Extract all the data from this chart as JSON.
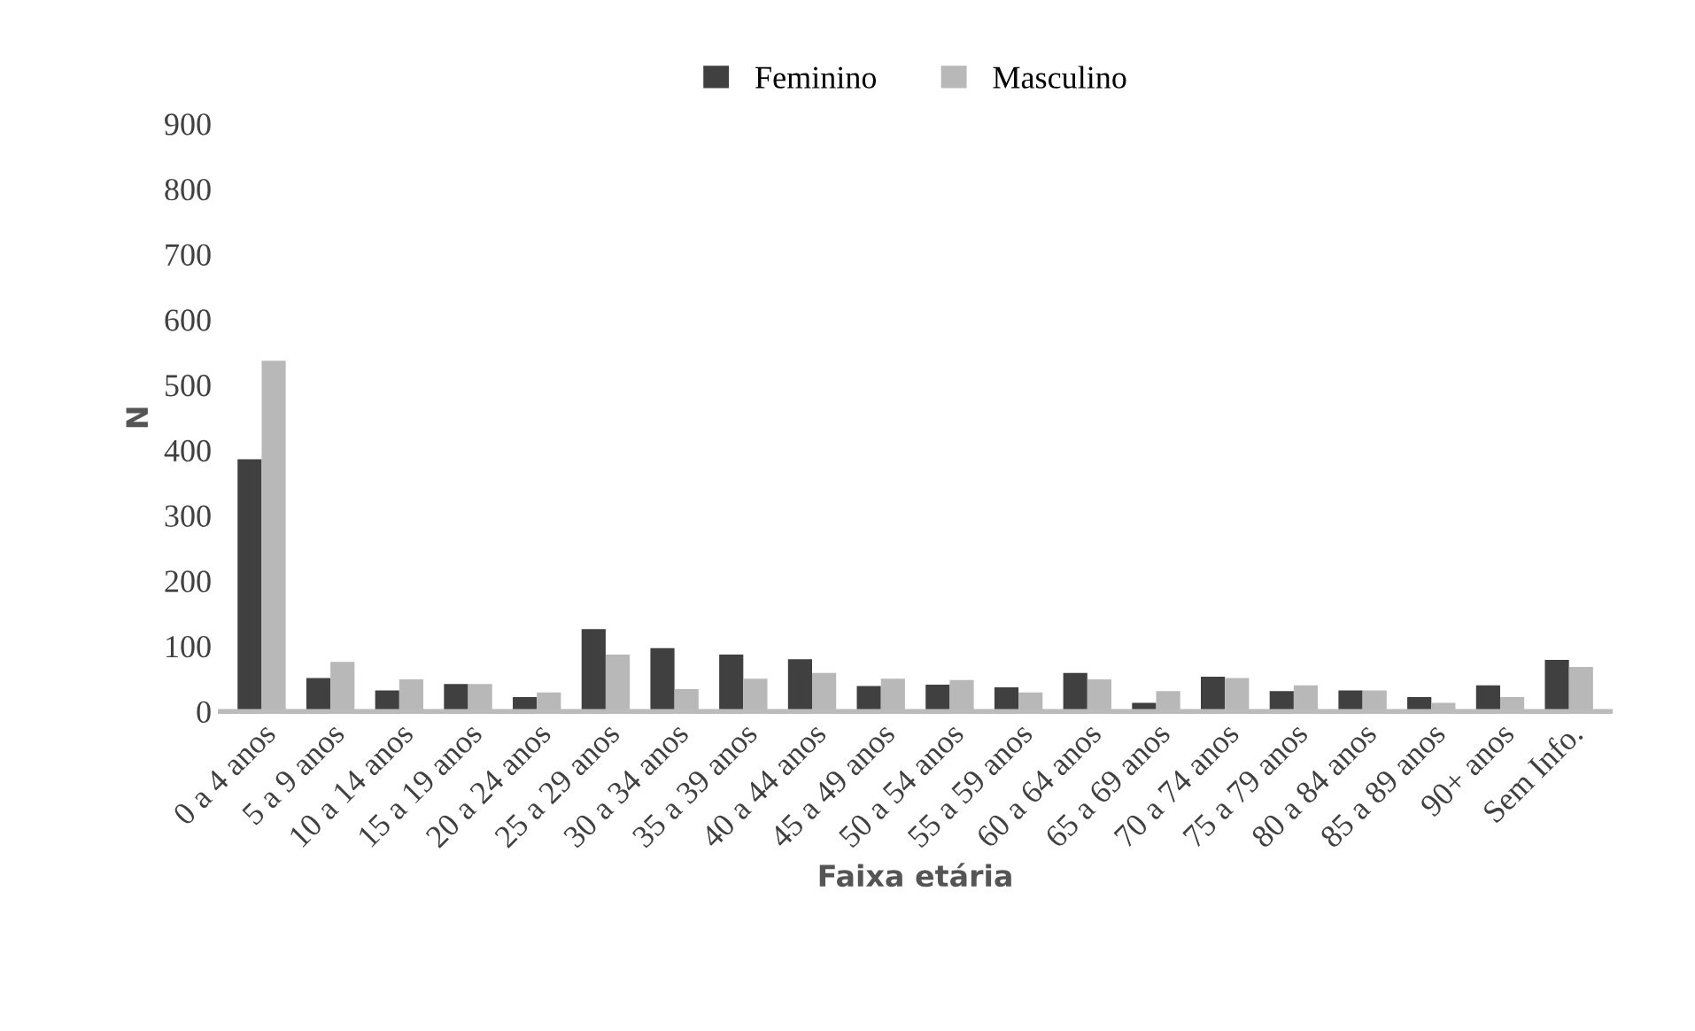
{
  "chart_data": {
    "type": "bar",
    "xlabel": "Faixa etária",
    "ylabel": "N",
    "categories": [
      "0 a 4 anos",
      "5 a 9 anos",
      "10 a 14 anos",
      "15 a 19 anos",
      "20 a 24 anos",
      "25 a 29 anos",
      "30 a 34 anos",
      "35 a 39 anos",
      "40 a 44 anos",
      "45 a 49 anos",
      "50 a 54 anos",
      "55 a 59 anos",
      "60 a 64 anos",
      "65 a 69 anos",
      "70 a 74 anos",
      "75 a 79 anos",
      "80 a 84 anos",
      "85 a 89 anos",
      "90+ anos",
      "Sem Info."
    ],
    "series": [
      {
        "name": "Feminino",
        "color": "#404040",
        "values": [
          386,
          51,
          32,
          42,
          22,
          126,
          97,
          87,
          80,
          39,
          41,
          37,
          59,
          13,
          53,
          31,
          32,
          22,
          40,
          79
        ]
      },
      {
        "name": "Masculino",
        "color": "#b8b8b8",
        "values": [
          537,
          76,
          49,
          42,
          29,
          87,
          34,
          50,
          59,
          50,
          48,
          29,
          49,
          31,
          51,
          40,
          32,
          13,
          22,
          68
        ]
      }
    ],
    "ylim": [
      0,
      900
    ],
    "yticks": [
      0,
      100,
      200,
      300,
      400,
      500,
      600,
      700,
      800,
      900
    ],
    "grid": false,
    "legend": "top"
  }
}
